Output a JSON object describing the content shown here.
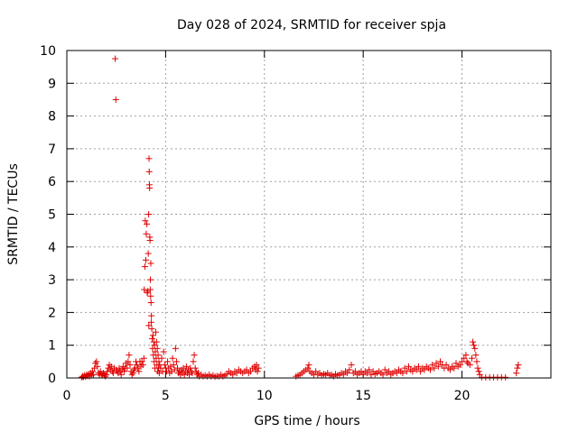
{
  "chart_data": {
    "type": "scatter",
    "title": "Day 028 of 2024, SRMTID for receiver spja",
    "xlabel": "GPS time / hours",
    "ylabel": "SRMTID / TECUs",
    "xlim": [
      0,
      24.5
    ],
    "ylim": [
      0,
      10
    ],
    "x_ticks": [
      0,
      5,
      10,
      15,
      20
    ],
    "y_ticks": [
      0,
      1,
      2,
      3,
      4,
      5,
      6,
      7,
      8,
      9,
      10
    ],
    "grid": true,
    "marker": "+",
    "series": [
      {
        "name": "SRMTID",
        "color": "#e00000",
        "points": [
          [
            0.75,
            0.02
          ],
          [
            0.8,
            0.05
          ],
          [
            0.85,
            0.03
          ],
          [
            0.9,
            0.08
          ],
          [
            0.95,
            0.04
          ],
          [
            1.0,
            0.1
          ],
          [
            1.05,
            0.06
          ],
          [
            1.1,
            0.12
          ],
          [
            1.15,
            0.05
          ],
          [
            1.2,
            0.15
          ],
          [
            1.25,
            0.08
          ],
          [
            1.3,
            0.2
          ],
          [
            1.35,
            0.1
          ],
          [
            1.4,
            0.3
          ],
          [
            1.45,
            0.45
          ],
          [
            1.5,
            0.5
          ],
          [
            1.55,
            0.35
          ],
          [
            1.6,
            0.15
          ],
          [
            1.65,
            0.1
          ],
          [
            1.7,
            0.2
          ],
          [
            1.75,
            0.12
          ],
          [
            1.8,
            0.08
          ],
          [
            1.85,
            0.15
          ],
          [
            1.9,
            0.1
          ],
          [
            1.95,
            0.05
          ],
          [
            2.0,
            0.1
          ],
          [
            2.05,
            0.2
          ],
          [
            2.1,
            0.3
          ],
          [
            2.15,
            0.4
          ],
          [
            2.2,
            0.25
          ],
          [
            2.25,
            0.35
          ],
          [
            2.3,
            0.2
          ],
          [
            2.35,
            0.15
          ],
          [
            2.4,
            0.3
          ],
          [
            2.45,
            9.75
          ],
          [
            2.48,
            8.5
          ],
          [
            2.5,
            0.25
          ],
          [
            2.55,
            0.2
          ],
          [
            2.6,
            0.15
          ],
          [
            2.65,
            0.3
          ],
          [
            2.7,
            0.2
          ],
          [
            2.75,
            0.1
          ],
          [
            2.8,
            0.25
          ],
          [
            2.85,
            0.35
          ],
          [
            2.9,
            0.2
          ],
          [
            2.95,
            0.3
          ],
          [
            3.0,
            0.45
          ],
          [
            3.05,
            0.3
          ],
          [
            3.1,
            0.5
          ],
          [
            3.15,
            0.7
          ],
          [
            3.2,
            0.4
          ],
          [
            3.25,
            0.2
          ],
          [
            3.3,
            0.1
          ],
          [
            3.35,
            0.15
          ],
          [
            3.4,
            0.25
          ],
          [
            3.45,
            0.3
          ],
          [
            3.5,
            0.5
          ],
          [
            3.55,
            0.4
          ],
          [
            3.6,
            0.3
          ],
          [
            3.65,
            0.2
          ],
          [
            3.7,
            0.5
          ],
          [
            3.75,
            0.35
          ],
          [
            3.8,
            0.5
          ],
          [
            3.85,
            0.4
          ],
          [
            3.9,
            0.6
          ],
          [
            3.92,
            2.7
          ],
          [
            3.95,
            3.4
          ],
          [
            3.97,
            4.8
          ],
          [
            4.0,
            3.6
          ],
          [
            4.02,
            4.4
          ],
          [
            4.05,
            4.7
          ],
          [
            4.07,
            2.6
          ],
          [
            4.1,
            2.65
          ],
          [
            4.12,
            3.8
          ],
          [
            4.14,
            5.0
          ],
          [
            4.15,
            1.6
          ],
          [
            4.16,
            6.7
          ],
          [
            4.17,
            6.3
          ],
          [
            4.18,
            5.9
          ],
          [
            4.19,
            5.8
          ],
          [
            4.2,
            4.3
          ],
          [
            4.21,
            4.2
          ],
          [
            4.22,
            2.7
          ],
          [
            4.23,
            3.0
          ],
          [
            4.24,
            2.5
          ],
          [
            4.25,
            3.5
          ],
          [
            4.26,
            2.3
          ],
          [
            4.27,
            1.7
          ],
          [
            4.28,
            1.9
          ],
          [
            4.3,
            1.5
          ],
          [
            4.32,
            1.2
          ],
          [
            4.34,
            0.9
          ],
          [
            4.36,
            1.3
          ],
          [
            4.38,
            0.7
          ],
          [
            4.4,
            1.1
          ],
          [
            4.42,
            0.5
          ],
          [
            4.44,
            1.0
          ],
          [
            4.46,
            0.3
          ],
          [
            4.48,
            0.8
          ],
          [
            4.5,
            1.4
          ],
          [
            4.52,
            0.6
          ],
          [
            4.54,
            1.1
          ],
          [
            4.56,
            0.4
          ],
          [
            4.58,
            0.9
          ],
          [
            4.6,
            0.2
          ],
          [
            4.62,
            0.7
          ],
          [
            4.64,
            0.3
          ],
          [
            4.66,
            0.5
          ],
          [
            4.68,
            0.15
          ],
          [
            4.7,
            0.4
          ],
          [
            4.75,
            0.3
          ],
          [
            4.8,
            0.6
          ],
          [
            4.85,
            0.2
          ],
          [
            4.9,
            0.8
          ],
          [
            4.95,
            0.4
          ],
          [
            5.0,
            0.3
          ],
          [
            5.05,
            0.2
          ],
          [
            5.1,
            0.5
          ],
          [
            5.15,
            0.3
          ],
          [
            5.2,
            0.15
          ],
          [
            5.25,
            0.35
          ],
          [
            5.3,
            0.2
          ],
          [
            5.35,
            0.6
          ],
          [
            5.4,
            0.4
          ],
          [
            5.45,
            0.25
          ],
          [
            5.5,
            0.9
          ],
          [
            5.55,
            0.5
          ],
          [
            5.6,
            0.3
          ],
          [
            5.65,
            0.15
          ],
          [
            5.7,
            0.2
          ],
          [
            5.75,
            0.1
          ],
          [
            5.8,
            0.25
          ],
          [
            5.85,
            0.15
          ],
          [
            5.9,
            0.3
          ],
          [
            5.95,
            0.1
          ],
          [
            6.0,
            0.2
          ],
          [
            6.05,
            0.35
          ],
          [
            6.1,
            0.15
          ],
          [
            6.15,
            0.25
          ],
          [
            6.2,
            0.1
          ],
          [
            6.25,
            0.3
          ],
          [
            6.3,
            0.2
          ],
          [
            6.35,
            0.15
          ],
          [
            6.4,
            0.5
          ],
          [
            6.45,
            0.7
          ],
          [
            6.5,
            0.3
          ],
          [
            6.55,
            0.2
          ],
          [
            6.6,
            0.1
          ],
          [
            6.65,
            0.15
          ],
          [
            6.7,
            0.05
          ],
          [
            6.8,
            0.1
          ],
          [
            6.9,
            0.05
          ],
          [
            7.0,
            0.08
          ],
          [
            7.1,
            0.05
          ],
          [
            7.2,
            0.1
          ],
          [
            7.3,
            0.05
          ],
          [
            7.4,
            0.08
          ],
          [
            7.5,
            0.04
          ],
          [
            7.6,
            0.06
          ],
          [
            7.7,
            0.05
          ],
          [
            7.8,
            0.1
          ],
          [
            7.9,
            0.05
          ],
          [
            8.0,
            0.08
          ],
          [
            8.1,
            0.12
          ],
          [
            8.2,
            0.2
          ],
          [
            8.3,
            0.15
          ],
          [
            8.4,
            0.1
          ],
          [
            8.5,
            0.2
          ],
          [
            8.6,
            0.15
          ],
          [
            8.7,
            0.25
          ],
          [
            8.8,
            0.2
          ],
          [
            8.9,
            0.15
          ],
          [
            9.0,
            0.2
          ],
          [
            9.1,
            0.25
          ],
          [
            9.2,
            0.15
          ],
          [
            9.3,
            0.2
          ],
          [
            9.4,
            0.3
          ],
          [
            9.5,
            0.35
          ],
          [
            9.55,
            0.25
          ],
          [
            9.6,
            0.4
          ],
          [
            9.65,
            0.2
          ],
          [
            9.7,
            0.3
          ],
          [
            11.6,
            0.05
          ],
          [
            11.7,
            0.08
          ],
          [
            11.8,
            0.1
          ],
          [
            11.9,
            0.15
          ],
          [
            12.0,
            0.2
          ],
          [
            12.1,
            0.25
          ],
          [
            12.2,
            0.3
          ],
          [
            12.25,
            0.4
          ],
          [
            12.3,
            0.2
          ],
          [
            12.4,
            0.15
          ],
          [
            12.5,
            0.1
          ],
          [
            12.6,
            0.2
          ],
          [
            12.7,
            0.1
          ],
          [
            12.8,
            0.15
          ],
          [
            12.9,
            0.08
          ],
          [
            13.0,
            0.12
          ],
          [
            13.1,
            0.1
          ],
          [
            13.2,
            0.15
          ],
          [
            13.3,
            0.08
          ],
          [
            13.4,
            0.1
          ],
          [
            13.5,
            0.05
          ],
          [
            13.6,
            0.12
          ],
          [
            13.7,
            0.08
          ],
          [
            13.8,
            0.1
          ],
          [
            13.9,
            0.15
          ],
          [
            14.0,
            0.1
          ],
          [
            14.1,
            0.2
          ],
          [
            14.2,
            0.15
          ],
          [
            14.3,
            0.25
          ],
          [
            14.4,
            0.4
          ],
          [
            14.5,
            0.15
          ],
          [
            14.6,
            0.2
          ],
          [
            14.7,
            0.1
          ],
          [
            14.8,
            0.15
          ],
          [
            14.9,
            0.2
          ],
          [
            15.0,
            0.1
          ],
          [
            15.1,
            0.2
          ],
          [
            15.2,
            0.15
          ],
          [
            15.3,
            0.25
          ],
          [
            15.4,
            0.1
          ],
          [
            15.5,
            0.2
          ],
          [
            15.6,
            0.12
          ],
          [
            15.7,
            0.15
          ],
          [
            15.8,
            0.2
          ],
          [
            15.9,
            0.15
          ],
          [
            16.0,
            0.1
          ],
          [
            16.1,
            0.25
          ],
          [
            16.2,
            0.15
          ],
          [
            16.3,
            0.2
          ],
          [
            16.4,
            0.1
          ],
          [
            16.5,
            0.15
          ],
          [
            16.6,
            0.2
          ],
          [
            16.7,
            0.15
          ],
          [
            16.8,
            0.25
          ],
          [
            16.9,
            0.2
          ],
          [
            17.0,
            0.15
          ],
          [
            17.1,
            0.3
          ],
          [
            17.2,
            0.2
          ],
          [
            17.3,
            0.35
          ],
          [
            17.4,
            0.25
          ],
          [
            17.5,
            0.2
          ],
          [
            17.6,
            0.3
          ],
          [
            17.7,
            0.25
          ],
          [
            17.8,
            0.35
          ],
          [
            17.9,
            0.2
          ],
          [
            18.0,
            0.3
          ],
          [
            18.1,
            0.25
          ],
          [
            18.2,
            0.35
          ],
          [
            18.3,
            0.3
          ],
          [
            18.4,
            0.25
          ],
          [
            18.5,
            0.4
          ],
          [
            18.6,
            0.3
          ],
          [
            18.7,
            0.45
          ],
          [
            18.8,
            0.35
          ],
          [
            18.9,
            0.5
          ],
          [
            19.0,
            0.4
          ],
          [
            19.1,
            0.3
          ],
          [
            19.2,
            0.4
          ],
          [
            19.3,
            0.3
          ],
          [
            19.4,
            0.25
          ],
          [
            19.5,
            0.35
          ],
          [
            19.6,
            0.3
          ],
          [
            19.7,
            0.45
          ],
          [
            19.8,
            0.35
          ],
          [
            19.9,
            0.4
          ],
          [
            20.0,
            0.5
          ],
          [
            20.1,
            0.6
          ],
          [
            20.2,
            0.7
          ],
          [
            20.25,
            0.5
          ],
          [
            20.3,
            0.45
          ],
          [
            20.4,
            0.4
          ],
          [
            20.5,
            0.6
          ],
          [
            20.55,
            1.1
          ],
          [
            20.6,
            1.0
          ],
          [
            20.65,
            0.9
          ],
          [
            20.7,
            0.7
          ],
          [
            20.75,
            0.5
          ],
          [
            20.8,
            0.3
          ],
          [
            20.85,
            0.2
          ],
          [
            20.9,
            0.1
          ],
          [
            21.0,
            0.02
          ],
          [
            21.2,
            0.02
          ],
          [
            21.4,
            0.02
          ],
          [
            21.6,
            0.02
          ],
          [
            21.8,
            0.02
          ],
          [
            22.0,
            0.02
          ],
          [
            22.2,
            0.02
          ],
          [
            22.75,
            0.15
          ],
          [
            22.8,
            0.3
          ],
          [
            22.85,
            0.4
          ]
        ]
      }
    ]
  }
}
